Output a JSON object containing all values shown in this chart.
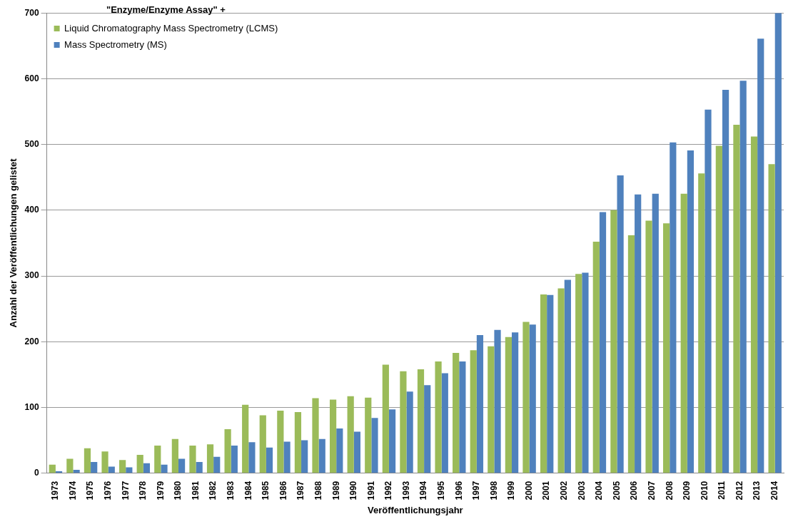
{
  "chart_data": {
    "type": "bar",
    "xlabel": "Veröffentlichungsjahr",
    "ylabel": "Anzahl der Veröffentlichungen gelistet",
    "legend_title": "\"Enzyme/Enzyme Assay\" +",
    "categories": [
      "1973",
      "1974",
      "1975",
      "1976",
      "1977",
      "1978",
      "1979",
      "1980",
      "1981",
      "1982",
      "1983",
      "1984",
      "1985",
      "1986",
      "1987",
      "1988",
      "1989",
      "1990",
      "1991",
      "1992",
      "1993",
      "1994",
      "1995",
      "1996",
      "1997",
      "1998",
      "1999",
      "2000",
      "2001",
      "2002",
      "2003",
      "2004",
      "2005",
      "2006",
      "2007",
      "2008",
      "2009",
      "2010",
      "2011",
      "2012",
      "2013",
      "2014"
    ],
    "series": [
      {
        "name": "Liquid Chromatography Mass Spectrometry (LCMS)",
        "color": "#9bbb59",
        "values": [
          13,
          22,
          38,
          33,
          20,
          28,
          42,
          52,
          42,
          44,
          67,
          104,
          88,
          95,
          93,
          114,
          112,
          117,
          115,
          165,
          155,
          158,
          170,
          183,
          187,
          193,
          207,
          230,
          272,
          281,
          303,
          352,
          400,
          362,
          384,
          380,
          425,
          456,
          498,
          530,
          512,
          470
        ]
      },
      {
        "name": "Mass Spectrometry (MS)",
        "color": "#4f81bd",
        "values": [
          3,
          5,
          17,
          10,
          9,
          15,
          13,
          22,
          17,
          25,
          42,
          47,
          39,
          48,
          50,
          52,
          68,
          63,
          84,
          97,
          124,
          134,
          152,
          170,
          210,
          218,
          214,
          226,
          271,
          294,
          305,
          397,
          453,
          424,
          425,
          503,
          491,
          553,
          583,
          597,
          661,
          700
        ]
      }
    ],
    "ylim": [
      0,
      700
    ],
    "yticks": [
      0,
      100,
      200,
      300,
      400,
      500,
      600,
      700
    ],
    "grid": "y",
    "legend": "top left"
  }
}
